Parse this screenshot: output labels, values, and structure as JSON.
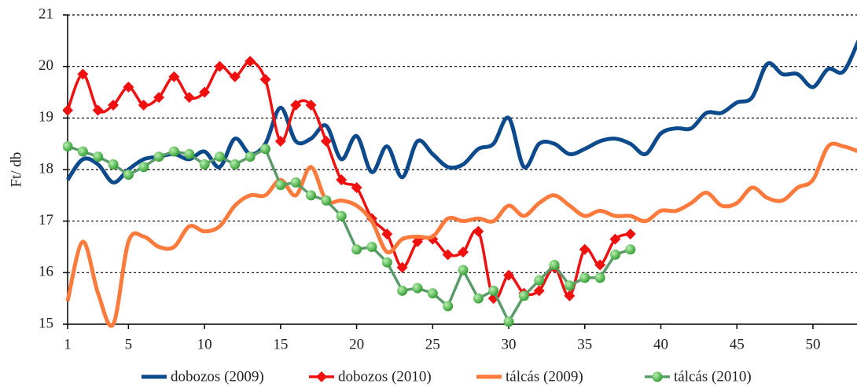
{
  "chart_data": {
    "type": "line",
    "y_label": "Ft/ db",
    "x": [
      1,
      2,
      3,
      4,
      5,
      6,
      7,
      8,
      9,
      10,
      11,
      12,
      13,
      14,
      15,
      16,
      17,
      18,
      19,
      20,
      21,
      22,
      23,
      24,
      25,
      26,
      27,
      28,
      29,
      30,
      31,
      32,
      33,
      34,
      35,
      36,
      37,
      38,
      39,
      40,
      41,
      42,
      43,
      44,
      45,
      46,
      47,
      48,
      49,
      50,
      51,
      52,
      53
    ],
    "xlim": [
      1,
      53
    ],
    "xticks": [
      1,
      5,
      10,
      15,
      20,
      25,
      30,
      35,
      40,
      45,
      50
    ],
    "ylim": [
      15,
      21
    ],
    "yticks": [
      15,
      16,
      17,
      18,
      19,
      20,
      21
    ],
    "grid": true,
    "legend": "bottom",
    "series": [
      {
        "name": "dobozos (2009)",
        "color": "#0d4a8c",
        "marker": null,
        "smooth": true,
        "values": [
          17.8,
          18.2,
          18.1,
          17.75,
          18.0,
          18.2,
          18.25,
          18.3,
          18.2,
          18.35,
          18.05,
          18.6,
          18.3,
          18.5,
          19.2,
          18.55,
          18.6,
          18.85,
          18.2,
          18.65,
          17.95,
          18.45,
          17.85,
          18.55,
          18.3,
          18.05,
          18.1,
          18.4,
          18.5,
          19.0,
          18.05,
          18.5,
          18.5,
          18.3,
          18.4,
          18.55,
          18.6,
          18.5,
          18.3,
          18.7,
          18.8,
          18.8,
          19.1,
          19.1,
          19.3,
          19.4,
          20.05,
          19.85,
          19.85,
          19.6,
          19.95,
          19.9,
          20.5
        ]
      },
      {
        "name": "dobozos (2010)",
        "color": "#f01010",
        "marker": "diamond",
        "smooth": true,
        "values": [
          19.15,
          19.85,
          19.15,
          19.25,
          19.6,
          19.25,
          19.4,
          19.8,
          19.4,
          19.5,
          20.0,
          19.8,
          20.1,
          19.75,
          18.55,
          19.25,
          19.25,
          18.55,
          17.8,
          17.65,
          17.05,
          16.75,
          16.1,
          16.6,
          16.65,
          16.35,
          16.4,
          16.8,
          15.5,
          15.95,
          15.6,
          15.65,
          16.1,
          15.55,
          16.45,
          16.15,
          16.65,
          16.75,
          null,
          null,
          null,
          null,
          null,
          null,
          null,
          null,
          null,
          null,
          null,
          null,
          null,
          null,
          null
        ]
      },
      {
        "name": "tálcás (2009)",
        "color": "#fb7a3c",
        "marker": null,
        "smooth": true,
        "values": [
          15.45,
          16.6,
          15.6,
          15.0,
          16.6,
          16.7,
          16.5,
          16.5,
          16.9,
          16.8,
          16.9,
          17.3,
          17.5,
          17.5,
          17.8,
          17.5,
          18.05,
          17.4,
          17.4,
          17.3,
          17.0,
          16.4,
          16.65,
          16.7,
          16.7,
          17.05,
          17.0,
          17.05,
          17.0,
          17.3,
          17.1,
          17.35,
          17.5,
          17.3,
          17.1,
          17.2,
          17.1,
          17.1,
          17.0,
          17.2,
          17.2,
          17.35,
          17.55,
          17.3,
          17.35,
          17.65,
          17.45,
          17.4,
          17.65,
          17.8,
          18.45,
          18.45,
          18.35
        ]
      },
      {
        "name": "tálcás (2010)",
        "color": "#5b9a6a",
        "marker": "circle",
        "smooth": false,
        "values": [
          18.45,
          18.35,
          18.25,
          18.1,
          17.9,
          18.05,
          18.25,
          18.35,
          18.3,
          18.1,
          18.25,
          18.1,
          18.25,
          18.4,
          17.7,
          17.75,
          17.5,
          17.4,
          17.1,
          16.45,
          16.5,
          16.2,
          15.65,
          15.7,
          15.6,
          15.35,
          16.05,
          15.5,
          15.65,
          15.05,
          15.55,
          15.85,
          16.15,
          15.75,
          15.9,
          15.9,
          16.35,
          16.45,
          null,
          null,
          null,
          null,
          null,
          null,
          null,
          null,
          null,
          null,
          null,
          null,
          null,
          null,
          null
        ]
      }
    ]
  }
}
